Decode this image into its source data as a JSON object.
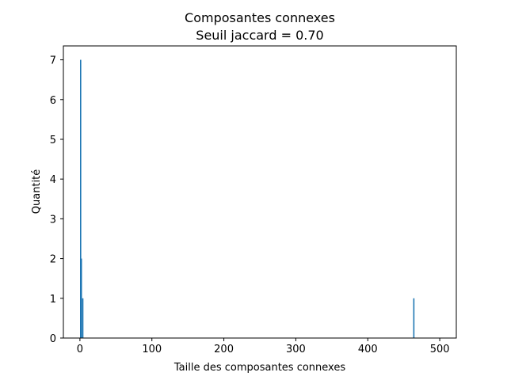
{
  "chart_data": {
    "type": "bar",
    "title": "Composantes connexes",
    "subtitle": "Seuil jaccard = 0.70",
    "xlabel": "Taille des composantes connexes",
    "ylabel": "Quantité",
    "xlim": [
      -23,
      523
    ],
    "ylim": [
      0,
      7.35
    ],
    "xticks": [
      0,
      100,
      200,
      300,
      400,
      500
    ],
    "yticks": [
      0,
      1,
      2,
      3,
      4,
      5,
      6,
      7
    ],
    "grid": false,
    "bar_color": "#1f77b4",
    "bins": [
      {
        "x": 1,
        "value": 7
      },
      {
        "x": 2,
        "value": 2
      },
      {
        "x": 4,
        "value": 1
      },
      {
        "x": 464,
        "value": 1
      }
    ]
  }
}
